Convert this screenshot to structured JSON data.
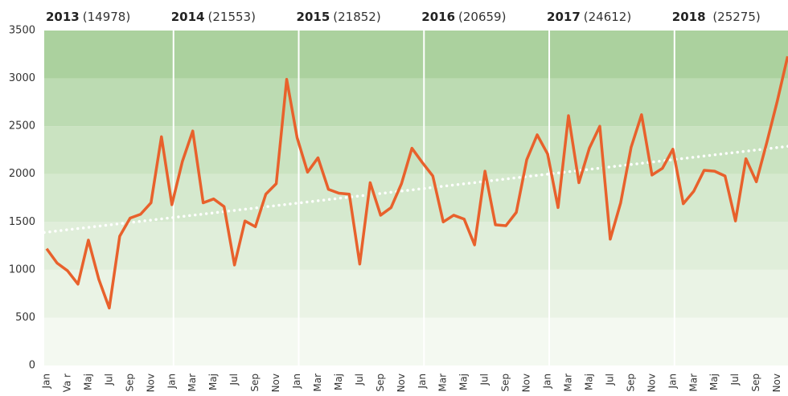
{
  "chart_data": {
    "type": "line",
    "categories": [
      "Jan",
      null,
      "Va r",
      null,
      "Maj",
      null,
      "Jul",
      null,
      "Sep",
      null,
      "Nov",
      null,
      "Jan",
      null,
      "Mar",
      null,
      "Maj",
      null,
      "Jul",
      null,
      "Sep",
      null,
      "Nov",
      null,
      "Jan",
      null,
      "Mar",
      null,
      "Maj",
      null,
      "Jul",
      null,
      "Sep",
      null,
      "Nov",
      null,
      "Jan",
      null,
      "Mar",
      null,
      "Maj",
      null,
      "Jul",
      null,
      "Sep",
      null,
      "Nov",
      null,
      "Jan",
      null,
      "Mar",
      null,
      "Maj",
      null,
      "Jul",
      null,
      "Sep",
      null,
      "Nov",
      null,
      "Jan",
      null,
      "Mar",
      null,
      "Maj",
      null,
      "Jul",
      null,
      "Sep",
      null,
      "Nov",
      null
    ],
    "series": [
      {
        "color": "#e8612c",
        "values": [
          1220,
          1070,
          990,
          850,
          1310,
          900,
          600,
          1350,
          1540,
          1580,
          1700,
          2390,
          1680,
          2130,
          2450,
          1700,
          1740,
          1660,
          1050,
          1510,
          1450,
          1790,
          1900,
          2990,
          2380,
          2020,
          2170,
          1840,
          1800,
          1790,
          1060,
          1910,
          1570,
          1650,
          1900,
          2270,
          2120,
          1980,
          1500,
          1570,
          1530,
          1260,
          2030,
          1470,
          1460,
          1600,
          2150,
          2410,
          2210,
          1650,
          2610,
          1910,
          2270,
          2500,
          1320,
          1700,
          2280,
          2620,
          1990,
          2060,
          2260,
          1690,
          1820,
          2040,
          2030,
          1980,
          1510,
          2160,
          1920,
          2330,
          2760,
          3230
        ]
      }
    ],
    "trend": [
      1390,
      2290
    ],
    "years": [
      {
        "year": "2013",
        "total": "(14978)"
      },
      {
        "year": "2014",
        "total": "(21553)"
      },
      {
        "year": "2015",
        "total": "(21852)"
      },
      {
        "year": "2016",
        "total": "(20659)"
      },
      {
        "year": "2017",
        "total": "(24612)"
      },
      {
        "year": "2018",
        "total": " (25275)"
      }
    ],
    "ylim": [
      0,
      3500
    ],
    "yticks": [
      0,
      500,
      1000,
      1500,
      2000,
      2500,
      3000,
      3500
    ],
    "band_colors": [
      "#f4f9f1",
      "#eaf3e5",
      "#e0eeda",
      "#d5e9ce",
      "#cae3c1",
      "#bcdbb2",
      "#abd19e"
    ]
  }
}
